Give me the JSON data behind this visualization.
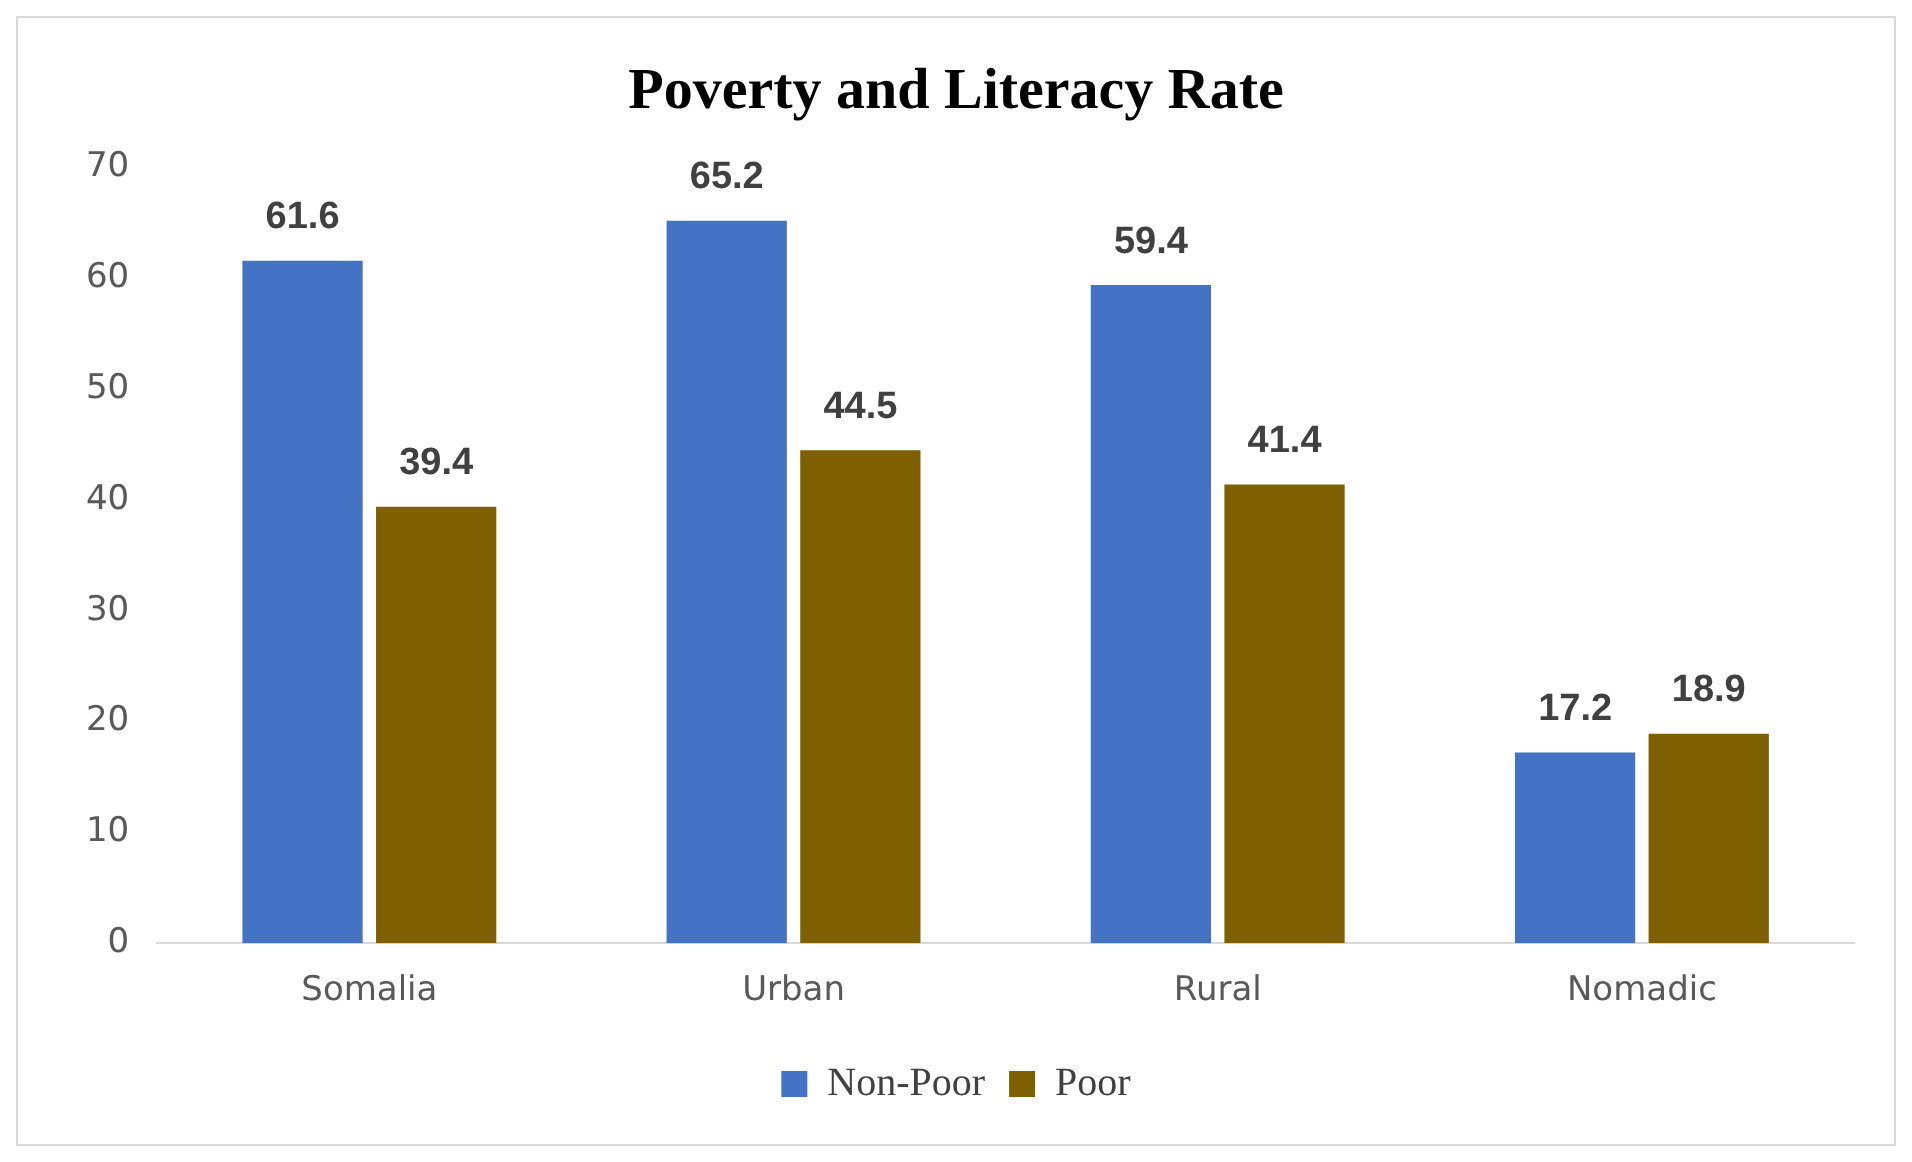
{
  "chart_data": {
    "type": "bar",
    "title": "Poverty and Literacy Rate",
    "categories": [
      "Somalia",
      "Urban",
      "Rural",
      "Nomadic"
    ],
    "series": [
      {
        "name": "Non-Poor",
        "color": "#4472c4",
        "values": [
          61.6,
          65.2,
          59.4,
          17.2
        ]
      },
      {
        "name": "Poor",
        "color": "#7f6000",
        "values": [
          39.4,
          44.5,
          41.4,
          18.9
        ]
      }
    ],
    "ylim": [
      0,
      70
    ],
    "yticks": [
      0,
      10,
      20,
      30,
      40,
      50,
      60,
      70
    ],
    "grid": false,
    "legend": "bottom",
    "data_labels": true
  }
}
